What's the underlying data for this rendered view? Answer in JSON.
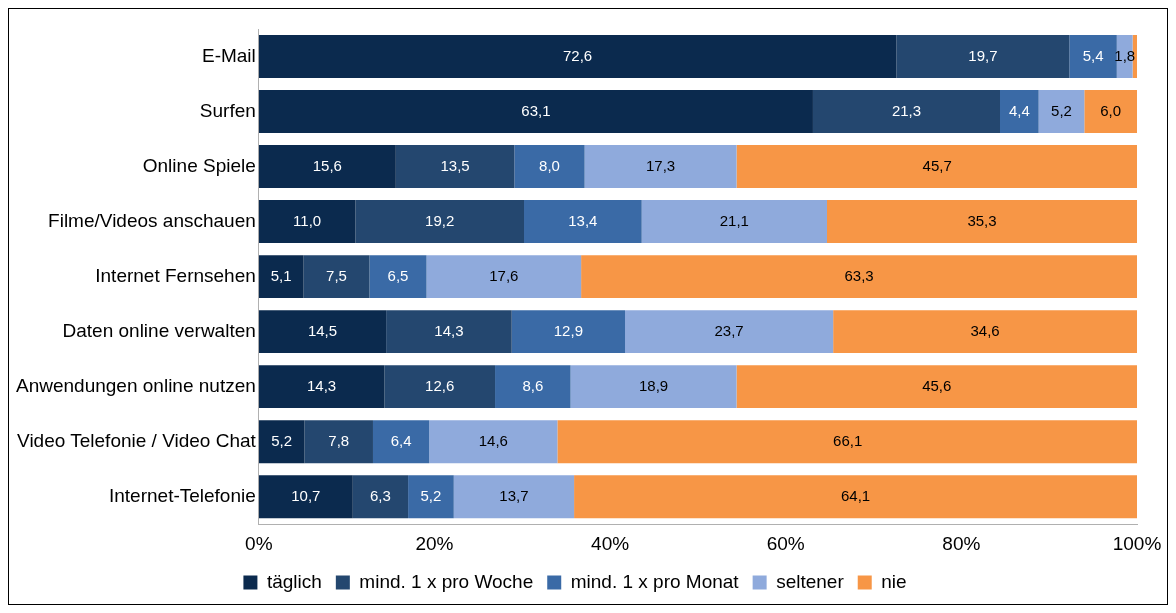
{
  "chart_data": {
    "type": "bar",
    "orientation": "horizontal",
    "stacked": true,
    "categories": [
      "E-Mail",
      "Surfen",
      "Online Spiele",
      "Filme/Videos anschauen",
      "Internet Fernsehen",
      "Daten online verwalten",
      "Anwendungen online nutzen",
      "Video Telefonie / Video Chat",
      "Internet-Telefonie"
    ],
    "series": [
      {
        "name": "täglich",
        "color": "#0b2a4e",
        "values": [
          72.6,
          63.1,
          15.6,
          11.0,
          5.1,
          14.5,
          14.3,
          5.2,
          10.7
        ],
        "value_labels": [
          "72,6",
          "63,1",
          "15,6",
          "11,0",
          "5,1",
          "14,5",
          "14,3",
          "5,2",
          "10,7"
        ]
      },
      {
        "name": "mind. 1 x pro Woche",
        "color": "#24476f",
        "values": [
          19.7,
          21.3,
          13.5,
          19.2,
          7.5,
          14.3,
          12.6,
          7.8,
          6.3
        ],
        "value_labels": [
          "19,7",
          "21,3",
          "13,5",
          "19,2",
          "7,5",
          "14,3",
          "12,6",
          "7,8",
          "6,3"
        ]
      },
      {
        "name": "mind. 1 x pro Monat",
        "color": "#3a6aa6",
        "values": [
          5.4,
          4.4,
          8.0,
          13.4,
          6.5,
          12.9,
          8.6,
          6.4,
          5.2
        ],
        "value_labels": [
          "5,4",
          "4,4",
          "8,0",
          "13,4",
          "6,5",
          "12,9",
          "8,6",
          "6,4",
          "5,2"
        ]
      },
      {
        "name": "seltener",
        "color": "#8faadc",
        "values": [
          1.8,
          5.2,
          17.3,
          21.1,
          17.6,
          23.7,
          18.9,
          14.6,
          13.7
        ],
        "value_labels": [
          "1,8",
          "5,2",
          "17,3",
          "21,1",
          "17,6",
          "23,7",
          "18,9",
          "14,6",
          "13,7"
        ]
      },
      {
        "name": "nie",
        "color": "#f79646",
        "values": [
          0.5,
          6.0,
          45.7,
          35.3,
          63.3,
          34.6,
          45.6,
          66.1,
          64.1
        ],
        "value_labels": [
          null,
          "6,0",
          "45,7",
          "35,3",
          "63,3",
          "34,6",
          "45,6",
          "66,1",
          "64,1"
        ]
      }
    ],
    "xlim": [
      0,
      100
    ],
    "xticks": [
      {
        "value": 0,
        "label": "0%"
      },
      {
        "value": 20,
        "label": "20%"
      },
      {
        "value": 40,
        "label": "40%"
      },
      {
        "value": 60,
        "label": "60%"
      },
      {
        "value": 80,
        "label": "80%"
      },
      {
        "value": 100,
        "label": "100%"
      }
    ],
    "grid": false,
    "legend": "bottom"
  }
}
